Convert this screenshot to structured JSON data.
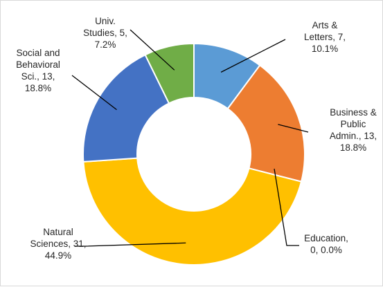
{
  "chart_data": {
    "type": "doughnut",
    "title": "",
    "slices": [
      {
        "category": [
          "Arts &",
          "Letters, 7,",
          "10.1%"
        ],
        "value": 7,
        "percent": 10.1,
        "color": "#5b9bd5"
      },
      {
        "category": [
          "Business &",
          "Public",
          "Admin., 13,",
          "18.8%"
        ],
        "value": 13,
        "percent": 18.8,
        "color": "#ed7d31"
      },
      {
        "category": [
          "Education,",
          "0, 0.0%"
        ],
        "value": 0,
        "percent": 0.0,
        "color": "#a5a5a5"
      },
      {
        "category": [
          "Natural",
          "Sciences, 31,",
          "44.9%"
        ],
        "value": 31,
        "percent": 44.9,
        "color": "#ffc000"
      },
      {
        "category": [
          "Social and",
          "Behavioral",
          "Sci., 13,",
          "18.8%"
        ],
        "value": 13,
        "percent": 18.8,
        "color": "#4472c4"
      },
      {
        "category": [
          "Univ.",
          "Studies, 5,",
          "7.2%"
        ],
        "value": 5,
        "percent": 7.2,
        "color": "#70ad47"
      }
    ]
  }
}
